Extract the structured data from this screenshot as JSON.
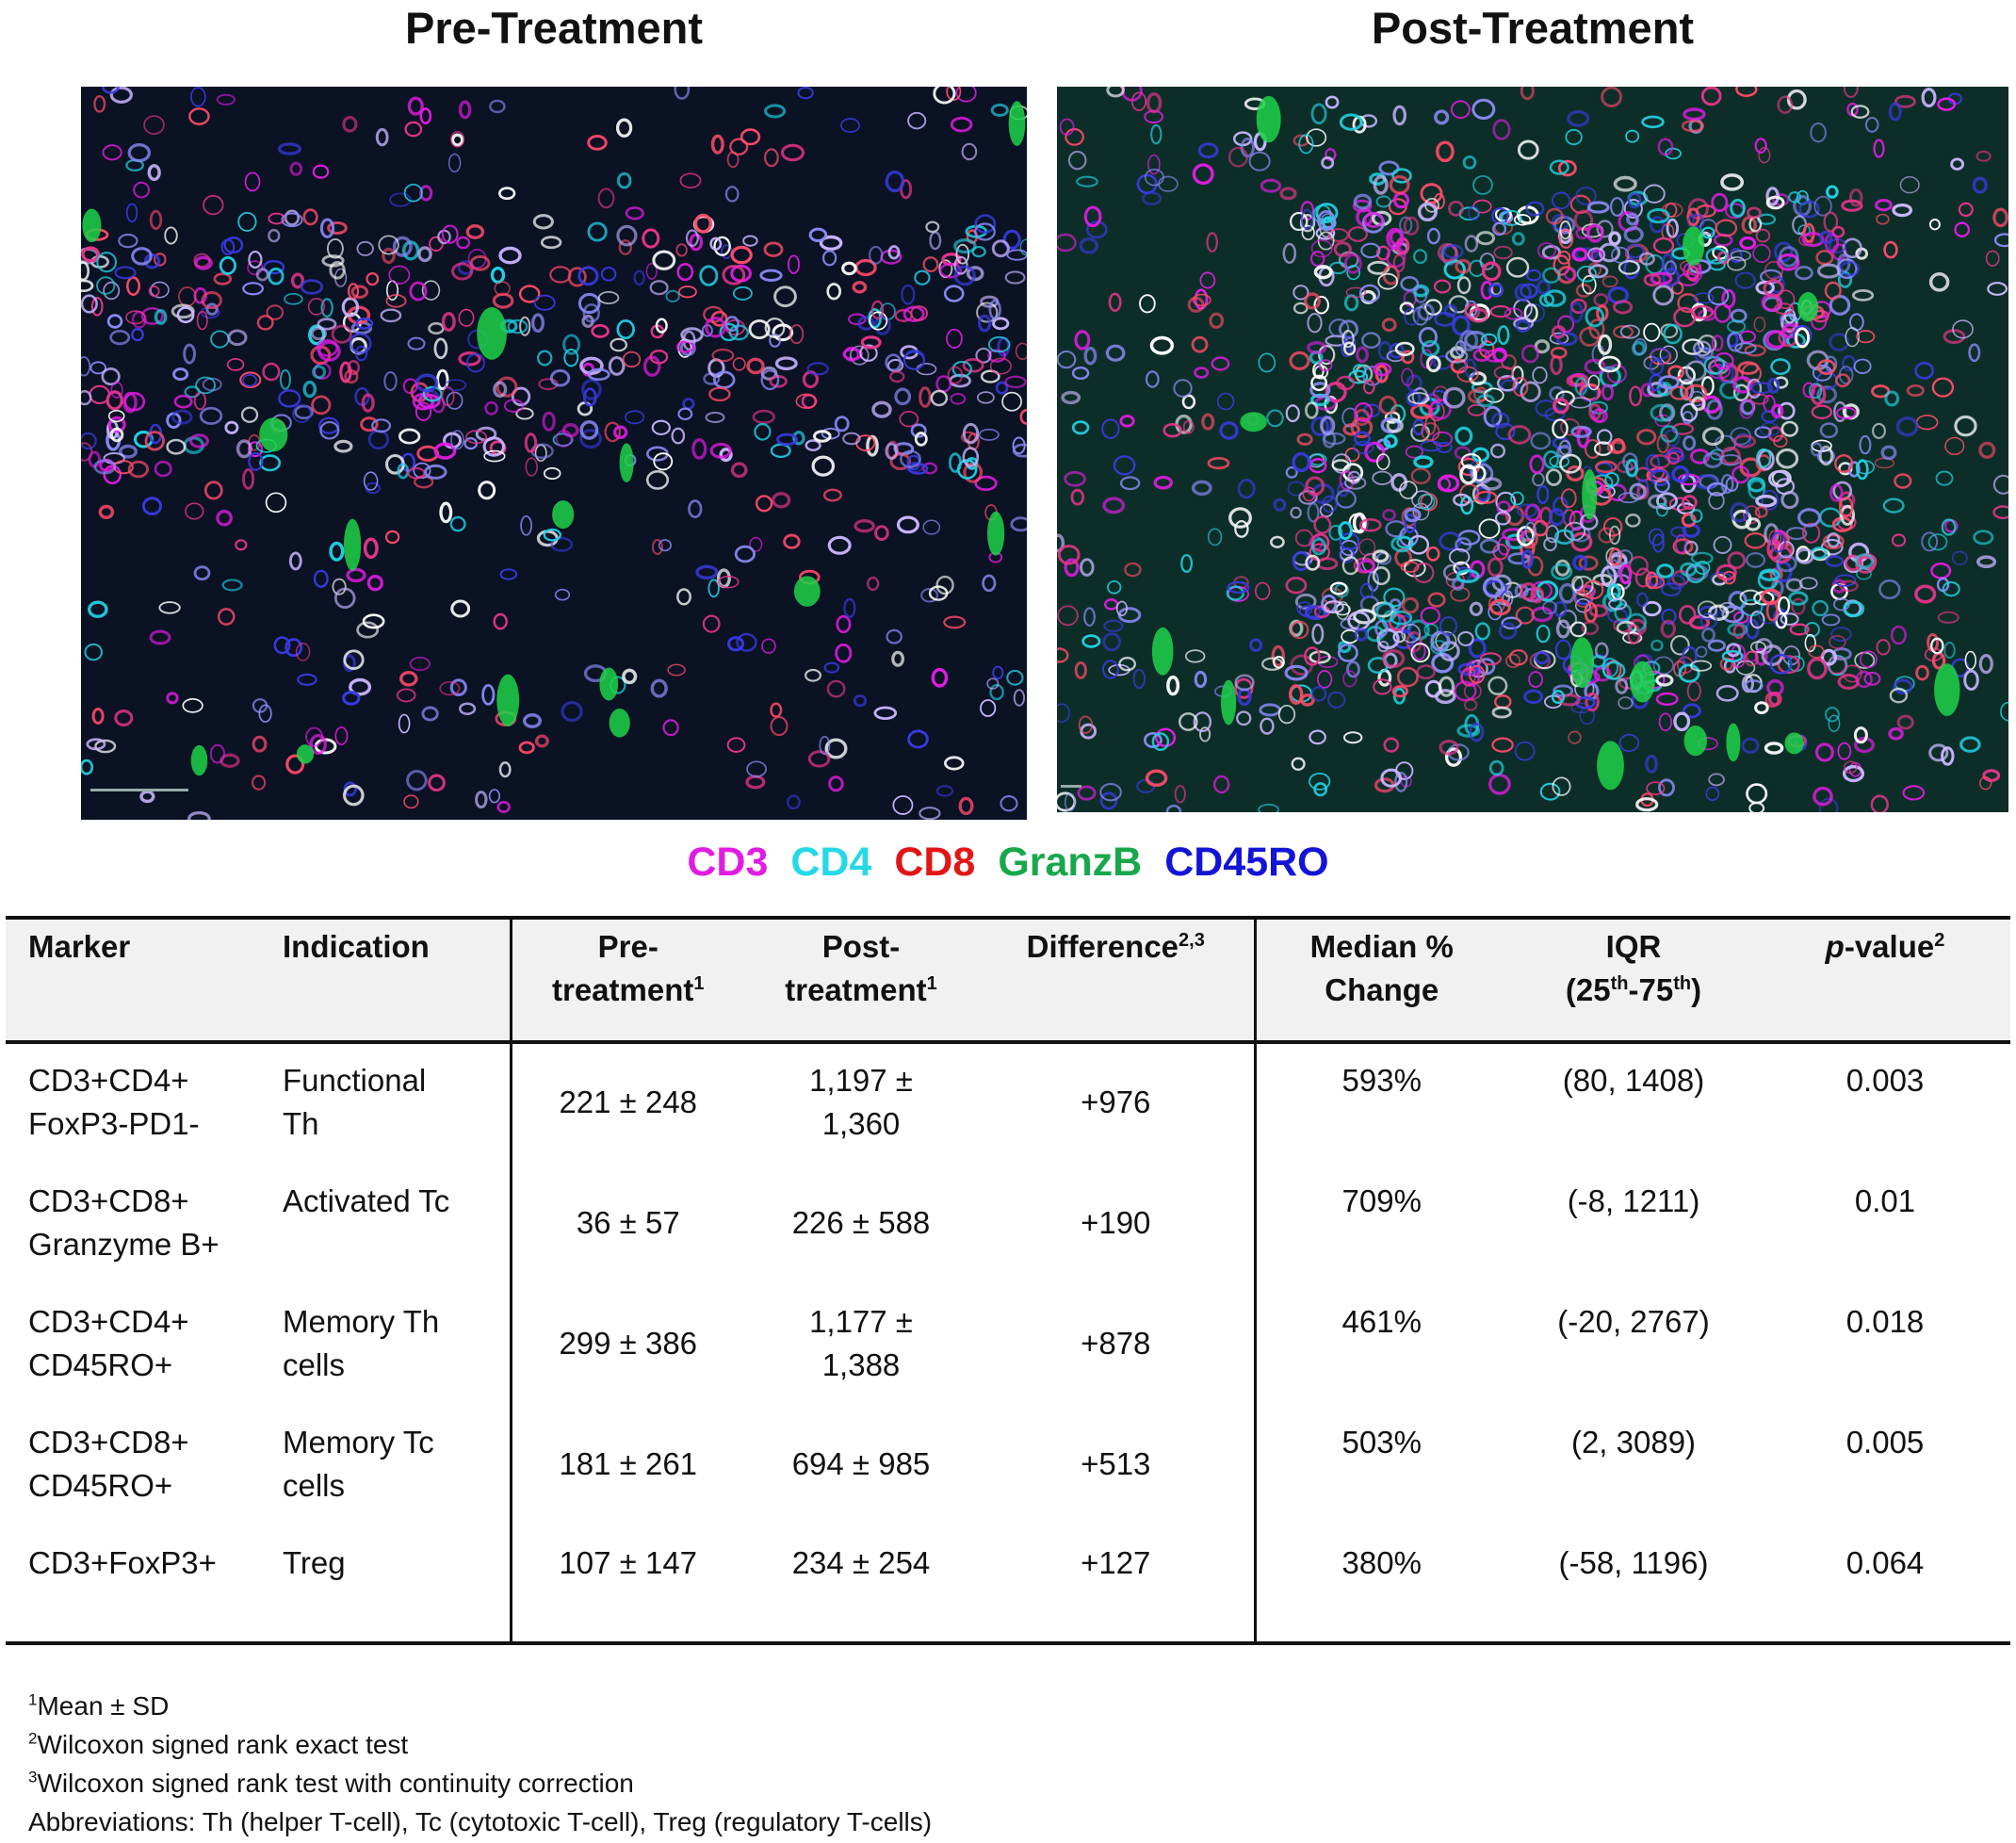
{
  "panels": {
    "pre_title": "Pre-Treatment",
    "post_title": "Post-Treatment"
  },
  "legend": [
    {
      "label": "CD3",
      "color": "#e21ce2"
    },
    {
      "label": "CD4",
      "color": "#25d9e6"
    },
    {
      "label": "CD8",
      "color": "#e21616"
    },
    {
      "label": "GranzB",
      "color": "#17a84b"
    },
    {
      "label": "CD45RO",
      "color": "#1414d6"
    }
  ],
  "table": {
    "headers": {
      "marker": "Marker",
      "indication": "Indication",
      "pre_line1": "Pre-",
      "pre_line2": "treatment",
      "pre_sup": "1",
      "post_line1": "Post-",
      "post_line2": "treatment",
      "post_sup": "1",
      "difference": "Difference",
      "difference_sup": "2,3",
      "median_line1": "Median %",
      "median_line2": "Change",
      "iqr_line1": "IQR",
      "iqr_line2_open": "(25",
      "iqr_sup1": "th",
      "iqr_dash": "-75",
      "iqr_sup2": "th",
      "iqr_close": ")",
      "pvalue_italic": "p",
      "pvalue_rest": "-value",
      "pvalue_sup": "2"
    },
    "rows": [
      {
        "marker_line1": "CD3+CD4+",
        "marker_line2": "FoxP3-PD1-",
        "ind_line1": "Functional",
        "ind_line2": "Th",
        "pre": "221 ± 248",
        "post_line1": "1,197 ±",
        "post_line2": "1,360",
        "diff": "+976",
        "median": "593%",
        "iqr": "(80, 1408)",
        "p": "0.003"
      },
      {
        "marker_line1": "CD3+CD8+",
        "marker_line2": "Granzyme B+",
        "ind_line1": "Activated Tc",
        "ind_line2": "",
        "pre": "36 ± 57",
        "post_line1": "226 ± 588",
        "post_line2": "",
        "diff": "+190",
        "median": "709%",
        "iqr": "(-8, 1211)",
        "p": "0.01"
      },
      {
        "marker_line1": "CD3+CD4+",
        "marker_line2": "CD45RO+",
        "ind_line1": "Memory Th",
        "ind_line2": "cells",
        "pre": "299 ± 386",
        "post_line1": "1,177 ±",
        "post_line2": "1,388",
        "diff": "+878",
        "median": "461%",
        "iqr": "(-20, 2767)",
        "p": "0.018"
      },
      {
        "marker_line1": "CD3+CD8+",
        "marker_line2": "CD45RO+",
        "ind_line1": "Memory Tc",
        "ind_line2": "cells",
        "pre": "181 ± 261",
        "post_line1": "694 ± 985",
        "post_line2": "",
        "diff": "+513",
        "median": "503%",
        "iqr": "(2, 3089)",
        "p": "0.005"
      },
      {
        "marker_line1": "CD3+FoxP3+",
        "marker_line2": "",
        "ind_line1": "Treg",
        "ind_line2": "",
        "pre": "107 ± 147",
        "post_line1": "234 ± 254",
        "post_line2": "",
        "diff": "+127",
        "median": "380%",
        "iqr": "(-58, 1196)",
        "p": "0.064"
      }
    ]
  },
  "footnotes": [
    {
      "sup": "1",
      "text": "Mean ± SD"
    },
    {
      "sup": "2",
      "text": "Wilcoxon signed rank exact test"
    },
    {
      "sup": "3",
      "text": "Wilcoxon signed rank test with continuity correction"
    },
    {
      "sup": "",
      "text": "Abbreviations: Th (helper T-cell), Tc (cytotoxic T-cell), Treg (regulatory T-cells)"
    }
  ]
}
